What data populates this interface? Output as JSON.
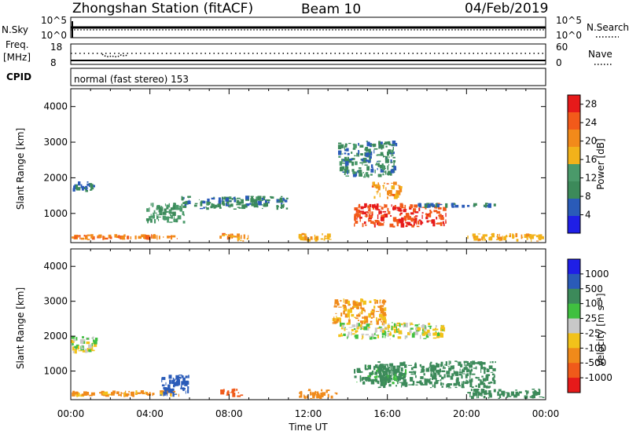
{
  "header": {
    "station": "Zhongshan Station (fitACF)",
    "beam": "Beam 10",
    "date": "04/Feb/2019"
  },
  "param_panels": {
    "nsky": {
      "label": "N.Sky",
      "ticks": [
        "10^5",
        "10^0"
      ],
      "right_label": "N.Search",
      "right_ticks": [
        "10^5",
        "10^0"
      ]
    },
    "freq": {
      "label_top": "Freq.",
      "label_bottom": "[MHz]",
      "ticks": [
        "18",
        "8"
      ],
      "right_label": "Nave",
      "right_ticks": [
        "60",
        "0"
      ]
    },
    "cpid": {
      "label": "CPID",
      "value": "normal (fast stereo) 153"
    }
  },
  "x_axis": {
    "title": "Time UT",
    "ticks": [
      "00:00",
      "04:00",
      "08:00",
      "12:00",
      "16:00",
      "20:00",
      "00:00"
    ]
  },
  "y_axis": {
    "title": "Slant Range [km]",
    "ticks": [
      "1000",
      "2000",
      "3000",
      "4000"
    ]
  },
  "colors": {
    "power": [
      "#1f1fe6",
      "#2a5bb8",
      "#3c8a5a",
      "#4a9a6a",
      "#f2b21a",
      "#f28a1a",
      "#f25a1a",
      "#e61a1a"
    ],
    "velocity": [
      "#e61a1a",
      "#f05a1a",
      "#f08a1a",
      "#f2c21a",
      "#c8c8c8",
      "#40c040",
      "#3c8a5a",
      "#2a5bb8",
      "#1f1fe6"
    ]
  },
  "chart_data": [
    {
      "type": "heatmap",
      "title": "",
      "xlabel": "Time UT",
      "ylabel": "Slant Range [km]",
      "xlim": [
        0,
        24
      ],
      "ylim": [
        180,
        4500
      ],
      "colorbar": {
        "label": "Power [dB]",
        "range": [
          0,
          30
        ],
        "ticks": [
          "4",
          "8",
          "12",
          "16",
          "20",
          "24",
          "28"
        ]
      },
      "regions": [
        {
          "t0": 0.0,
          "t1": 1.3,
          "r0": 1600,
          "r1": 1900,
          "value": 8
        },
        {
          "t0": 0.0,
          "t1": 5.5,
          "r0": 250,
          "r1": 420,
          "value": 22
        },
        {
          "t0": 3.8,
          "t1": 5.8,
          "r0": 700,
          "r1": 1300,
          "value": 12
        },
        {
          "t0": 5.5,
          "t1": 11.0,
          "r0": 1100,
          "r1": 1500,
          "value": 9
        },
        {
          "t0": 7.5,
          "t1": 9.0,
          "r0": 200,
          "r1": 450,
          "value": 20
        },
        {
          "t0": 11.5,
          "t1": 13.2,
          "r0": 200,
          "r1": 450,
          "value": 18
        },
        {
          "t0": 13.5,
          "t1": 16.5,
          "r0": 2000,
          "r1": 3050,
          "value": 9
        },
        {
          "t0": 14.3,
          "t1": 19.0,
          "r0": 600,
          "r1": 1300,
          "value": 26
        },
        {
          "t0": 15.2,
          "t1": 16.8,
          "r0": 1400,
          "r1": 1900,
          "value": 20
        },
        {
          "t0": 17.5,
          "t1": 21.5,
          "r0": 1150,
          "r1": 1300,
          "value": 8
        },
        {
          "t0": 20.0,
          "t1": 24.0,
          "r0": 200,
          "r1": 450,
          "value": 18
        }
      ]
    },
    {
      "type": "heatmap",
      "title": "",
      "xlabel": "Time UT",
      "ylabel": "Slant Range [km]",
      "xlim": [
        0,
        24
      ],
      "ylim": [
        180,
        4500
      ],
      "colorbar": {
        "label": "Velocity [m s⁻¹]",
        "ticks": [
          "-1000",
          "-500",
          "-100",
          "-25",
          "25",
          "100",
          "500",
          "1000"
        ]
      },
      "regions": [
        {
          "t0": 0.0,
          "t1": 1.5,
          "r0": 1500,
          "r1": 2000,
          "value": 0
        },
        {
          "t0": 0.0,
          "t1": 5.5,
          "r0": 250,
          "r1": 450,
          "value": -150
        },
        {
          "t0": 4.5,
          "t1": 6.0,
          "r0": 250,
          "r1": 900,
          "value": 600
        },
        {
          "t0": 7.5,
          "t1": 8.8,
          "r0": 250,
          "r1": 500,
          "value": -700
        },
        {
          "t0": 11.5,
          "t1": 13.5,
          "r0": 200,
          "r1": 500,
          "value": -200
        },
        {
          "t0": 13.2,
          "t1": 16.0,
          "r0": 2300,
          "r1": 3100,
          "value": -150
        },
        {
          "t0": 13.5,
          "t1": 19.0,
          "r0": 1900,
          "r1": 2400,
          "value": 0
        },
        {
          "t0": 14.3,
          "t1": 17.0,
          "r0": 600,
          "r1": 1200,
          "value": 150
        },
        {
          "t0": 15.5,
          "t1": 21.5,
          "r0": 500,
          "r1": 1300,
          "value": 300
        },
        {
          "t0": 20.0,
          "t1": 24.0,
          "r0": 200,
          "r1": 500,
          "value": 300
        }
      ]
    }
  ]
}
